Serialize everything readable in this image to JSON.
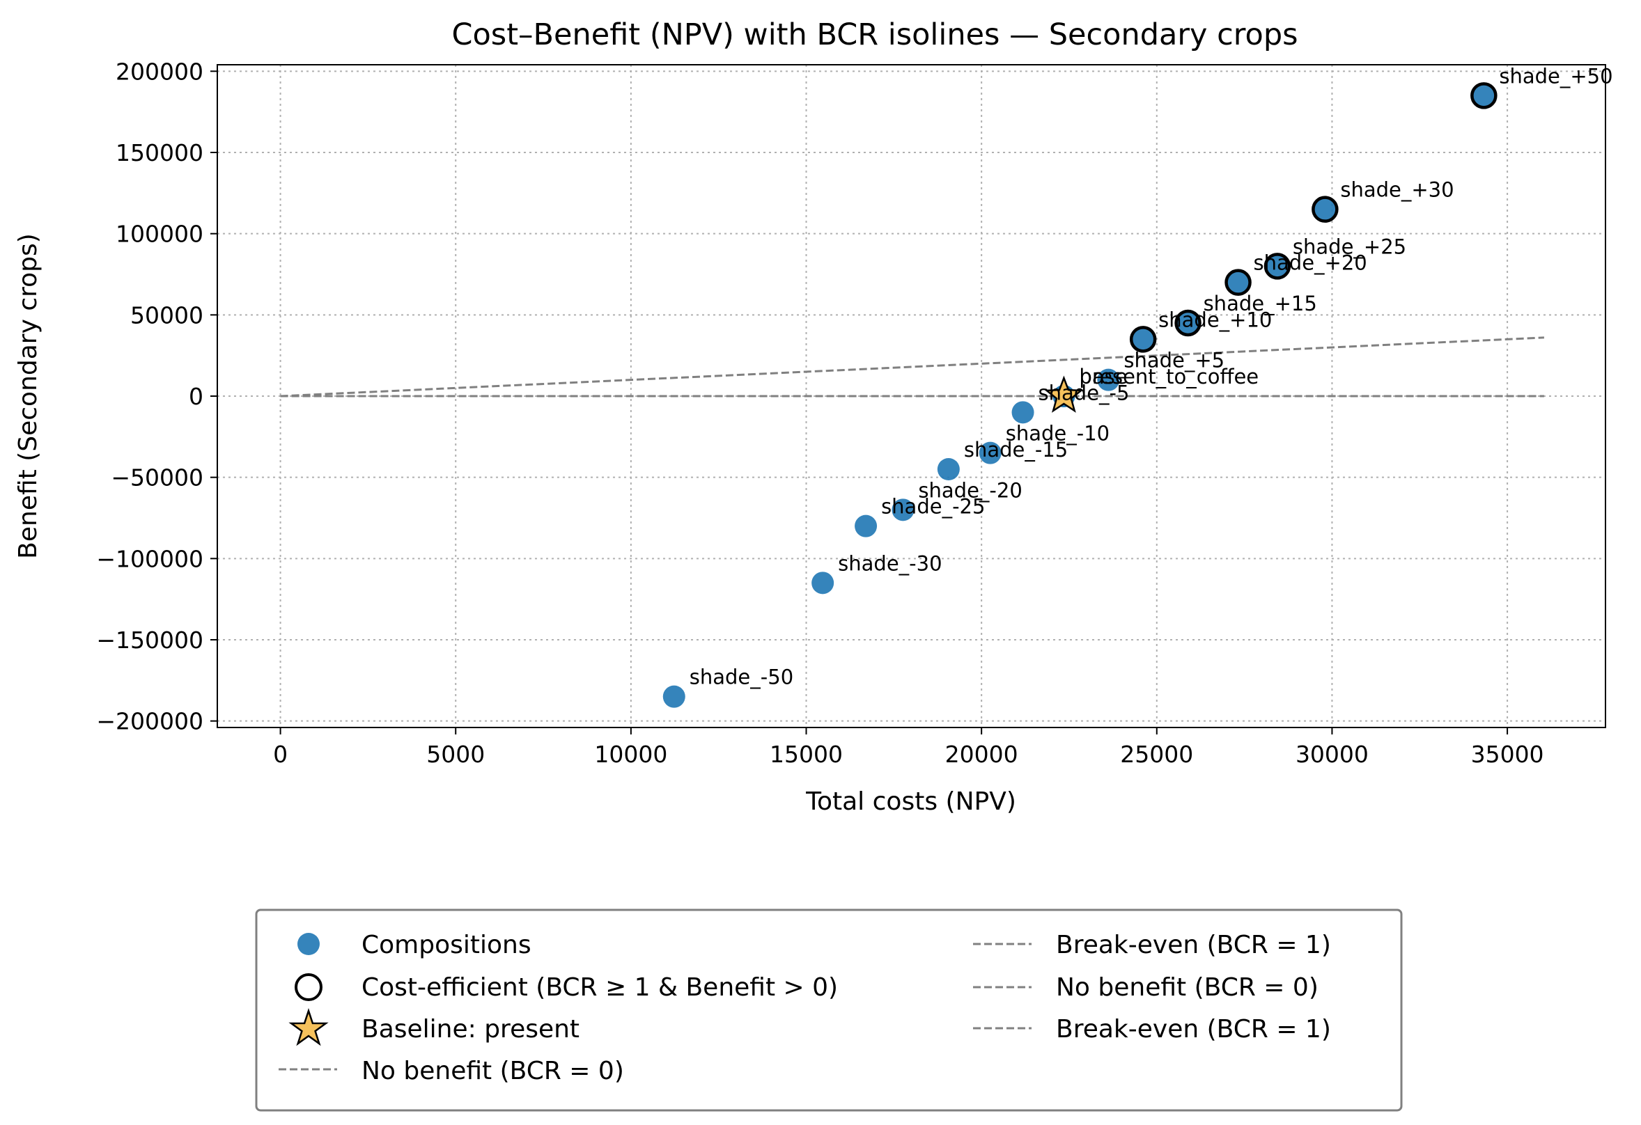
{
  "chart_data": {
    "type": "scatter",
    "title": "Cost–Benefit (NPV) with BCR isolines — Secondary crops",
    "xlabel": "Total costs (NPV)",
    "ylabel": "Benefit (Secondary crops)",
    "xlim": [
      -1800,
      37800
    ],
    "ylim": [
      -204000,
      204000
    ],
    "x_ticks": [
      0,
      5000,
      10000,
      15000,
      20000,
      25000,
      30000,
      35000
    ],
    "x_tick_labels": [
      "0",
      "5000",
      "10000",
      "15000",
      "20000",
      "25000",
      "30000",
      "35000"
    ],
    "y_ticks": [
      -200000,
      -150000,
      -100000,
      -50000,
      0,
      50000,
      100000,
      150000,
      200000
    ],
    "y_tick_labels": [
      "−200000",
      "−150000",
      "−100000",
      "−50000",
      "0",
      "50000",
      "100000",
      "150000",
      "200000"
    ],
    "grid": true,
    "series": [
      {
        "name": "Compositions",
        "color": "#1f77b4",
        "points": [
          {
            "label": "shade_-50",
            "x": 11230,
            "y": -185000
          },
          {
            "label": "shade_-30",
            "x": 15470,
            "y": -115000
          },
          {
            "label": "shade_-25",
            "x": 16700,
            "y": -80000
          },
          {
            "label": "shade_-20",
            "x": 17760,
            "y": -70000
          },
          {
            "label": "shade_-15",
            "x": 19060,
            "y": -45000
          },
          {
            "label": "shade_-10",
            "x": 20250,
            "y": -35000
          },
          {
            "label": "shade_-5",
            "x": 21180,
            "y": -10000
          },
          {
            "label": "shade_+5",
            "x": 23620,
            "y": 10000
          },
          {
            "label": "present_to_coffee",
            "x": 22350,
            "y": 0
          },
          {
            "label": "base",
            "x": 22350,
            "y": 0
          },
          {
            "label": "shade_+10",
            "x": 24610,
            "y": 35000
          },
          {
            "label": "shade_+15",
            "x": 25890,
            "y": 45000
          },
          {
            "label": "shade_+20",
            "x": 27320,
            "y": 70000
          },
          {
            "label": "shade_+25",
            "x": 28440,
            "y": 80000
          },
          {
            "label": "shade_+30",
            "x": 29800,
            "y": 115000
          },
          {
            "label": "shade_+50",
            "x": 34330,
            "y": 185000
          }
        ]
      },
      {
        "name": "Cost-efficient (BCR ≥ 1 & Benefit > 0)",
        "color": "#000000",
        "points": [
          {
            "x": 24610,
            "y": 35000
          },
          {
            "x": 25890,
            "y": 45000
          },
          {
            "x": 27320,
            "y": 70000
          },
          {
            "x": 28440,
            "y": 80000
          },
          {
            "x": 29800,
            "y": 115000
          },
          {
            "x": 34330,
            "y": 185000
          }
        ]
      },
      {
        "name": "Baseline: present",
        "color": "#f5c15c",
        "points": [
          {
            "x": 22350,
            "y": 0
          }
        ]
      }
    ],
    "lines": [
      {
        "name": "Break-even (BCR = 1)",
        "x": [
          0,
          36050
        ],
        "y": [
          0,
          36050
        ],
        "color": "#808080"
      },
      {
        "name": "No benefit (BCR = 0)",
        "x": [
          0,
          36050
        ],
        "y": [
          0,
          0
        ],
        "color": "#808080"
      }
    ],
    "legend": {
      "position": "bottom-center",
      "entries": [
        {
          "label": "Compositions",
          "marker": "dot"
        },
        {
          "label": "Cost-efficient (BCR ≥ 1 & Benefit > 0)",
          "marker": "ring"
        },
        {
          "label": "Baseline: present",
          "marker": "star"
        },
        {
          "label": "No benefit (BCR = 0)",
          "marker": "dash"
        },
        {
          "label": "Break-even (BCR = 1)",
          "marker": "dash"
        },
        {
          "label": "No benefit (BCR = 0)",
          "marker": "dash"
        },
        {
          "label": "Break-even (BCR = 1)",
          "marker": "dash"
        }
      ]
    }
  }
}
